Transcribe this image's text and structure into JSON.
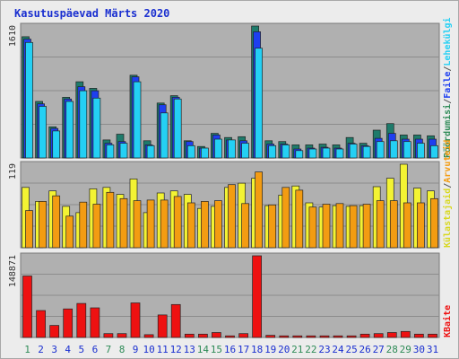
{
  "chart_data": {
    "type": "bar",
    "title": "Kasutuspäevad Märts 2020",
    "categories": [
      "1",
      "2",
      "3",
      "4",
      "5",
      "6",
      "7",
      "8",
      "9",
      "10",
      "11",
      "12",
      "13",
      "14",
      "15",
      "16",
      "17",
      "18",
      "19",
      "20",
      "21",
      "22",
      "23",
      "24",
      "25",
      "26",
      "27",
      "28",
      "29",
      "30",
      "31"
    ],
    "weekend_days": [
      "1",
      "7",
      "8",
      "14",
      "15",
      "21",
      "22",
      "28",
      "29"
    ],
    "colors": {
      "title": "#1a2fd0",
      "weekday_label": "#1a2fd0",
      "weekend_label": "#2e8b57",
      "plot_bg": "#b0b0b0",
      "grid": "#8c8c8c",
      "visits": "#1e7b6b",
      "pages": "#1e3ff0",
      "files": "#24d0f4",
      "hosts": "#f1c40f",
      "pagesFill": "#f3f333",
      "visits_bar": "#f39c12",
      "kbytes": "#ee1111"
    },
    "panels": [
      {
        "max_label": "1610",
        "right_labels": [
          {
            "text": "Pöördumisi",
            "color": "#2e8b57"
          },
          {
            "text": "/",
            "color": "#555555"
          },
          {
            "text": "Faile",
            "color": "#1e3ff0"
          },
          {
            "text": "/",
            "color": "#555555"
          },
          {
            "text": "Lehekülgi",
            "color": "#24d0f4"
          }
        ],
        "series": [
          {
            "name": "Pöördumisi",
            "color": "#1e7b6b",
            "values": [
              1480,
              690,
              380,
              740,
              930,
              850,
              220,
              290,
              1010,
              210,
              670,
              760,
              210,
              140,
              300,
              250,
              260,
              1610,
              210,
              200,
              160,
              160,
              170,
              160,
              250,
              180,
              340,
              420,
              280,
              280,
              270
            ]
          },
          {
            "name": "Lehekülgi",
            "color": "#1e3ff0",
            "values": [
              1450,
              660,
              360,
              720,
              870,
              820,
              180,
              200,
              990,
              160,
              650,
              740,
              200,
              120,
              280,
              220,
              210,
              1540,
              170,
              170,
              110,
              120,
              130,
              120,
              180,
              150,
              240,
              300,
              230,
              230,
              230
            ]
          },
          {
            "name": "Faile",
            "color": "#24d0f4",
            "values": [
              1410,
              630,
              330,
              690,
              820,
              730,
              160,
              180,
              930,
              150,
              550,
              720,
              150,
              120,
              230,
              220,
              180,
              1340,
              150,
              160,
              90,
              110,
              120,
              110,
              170,
              140,
              200,
              210,
              200,
              180,
              150
            ]
          }
        ]
      },
      {
        "max_label": "119",
        "right_labels": [
          {
            "text": "Külastajaid",
            "color": "#d8d820"
          },
          {
            "text": "/",
            "color": "#555555"
          },
          {
            "text": "Arvuteid",
            "color": "#f39c12"
          }
        ],
        "series": [
          {
            "name": "Külastajaid",
            "color": "#f3f333",
            "values": [
              86,
              66,
              81,
              59,
              50,
              84,
              86,
              76,
              98,
              50,
              78,
              81,
              76,
              56,
              59,
              86,
              92,
              99,
              60,
              75,
              88,
              64,
              58,
              60,
              59,
              60,
              87,
              99,
              119,
              85,
              81
            ]
          },
          {
            "name": "Arvuteid",
            "color": "#f39c12",
            "values": [
              53,
              66,
              74,
              45,
              65,
              62,
              79,
              70,
              67,
              68,
              68,
              73,
              64,
              66,
              67,
              90,
              63,
              108,
              61,
              86,
              82,
              58,
              62,
              63,
              60,
              62,
              67,
              67,
              64,
              64,
              70
            ]
          }
        ]
      },
      {
        "max_label": "148871",
        "right_labels": [
          {
            "text": "KBaite",
            "color": "#ee1111"
          }
        ],
        "series": [
          {
            "name": "KBaite",
            "color": "#ee1111",
            "values": [
              112000,
              49000,
              22000,
              52000,
              62000,
              54000,
              7000,
              7000,
              63000,
              5000,
              41000,
              60000,
              6000,
              6000,
              9000,
              3000,
              7000,
              148871,
              4000,
              3000,
              3000,
              3000,
              3000,
              3000,
              3000,
              6000,
              7000,
              9000,
              11000,
              6000,
              6000
            ]
          }
        ]
      }
    ]
  }
}
